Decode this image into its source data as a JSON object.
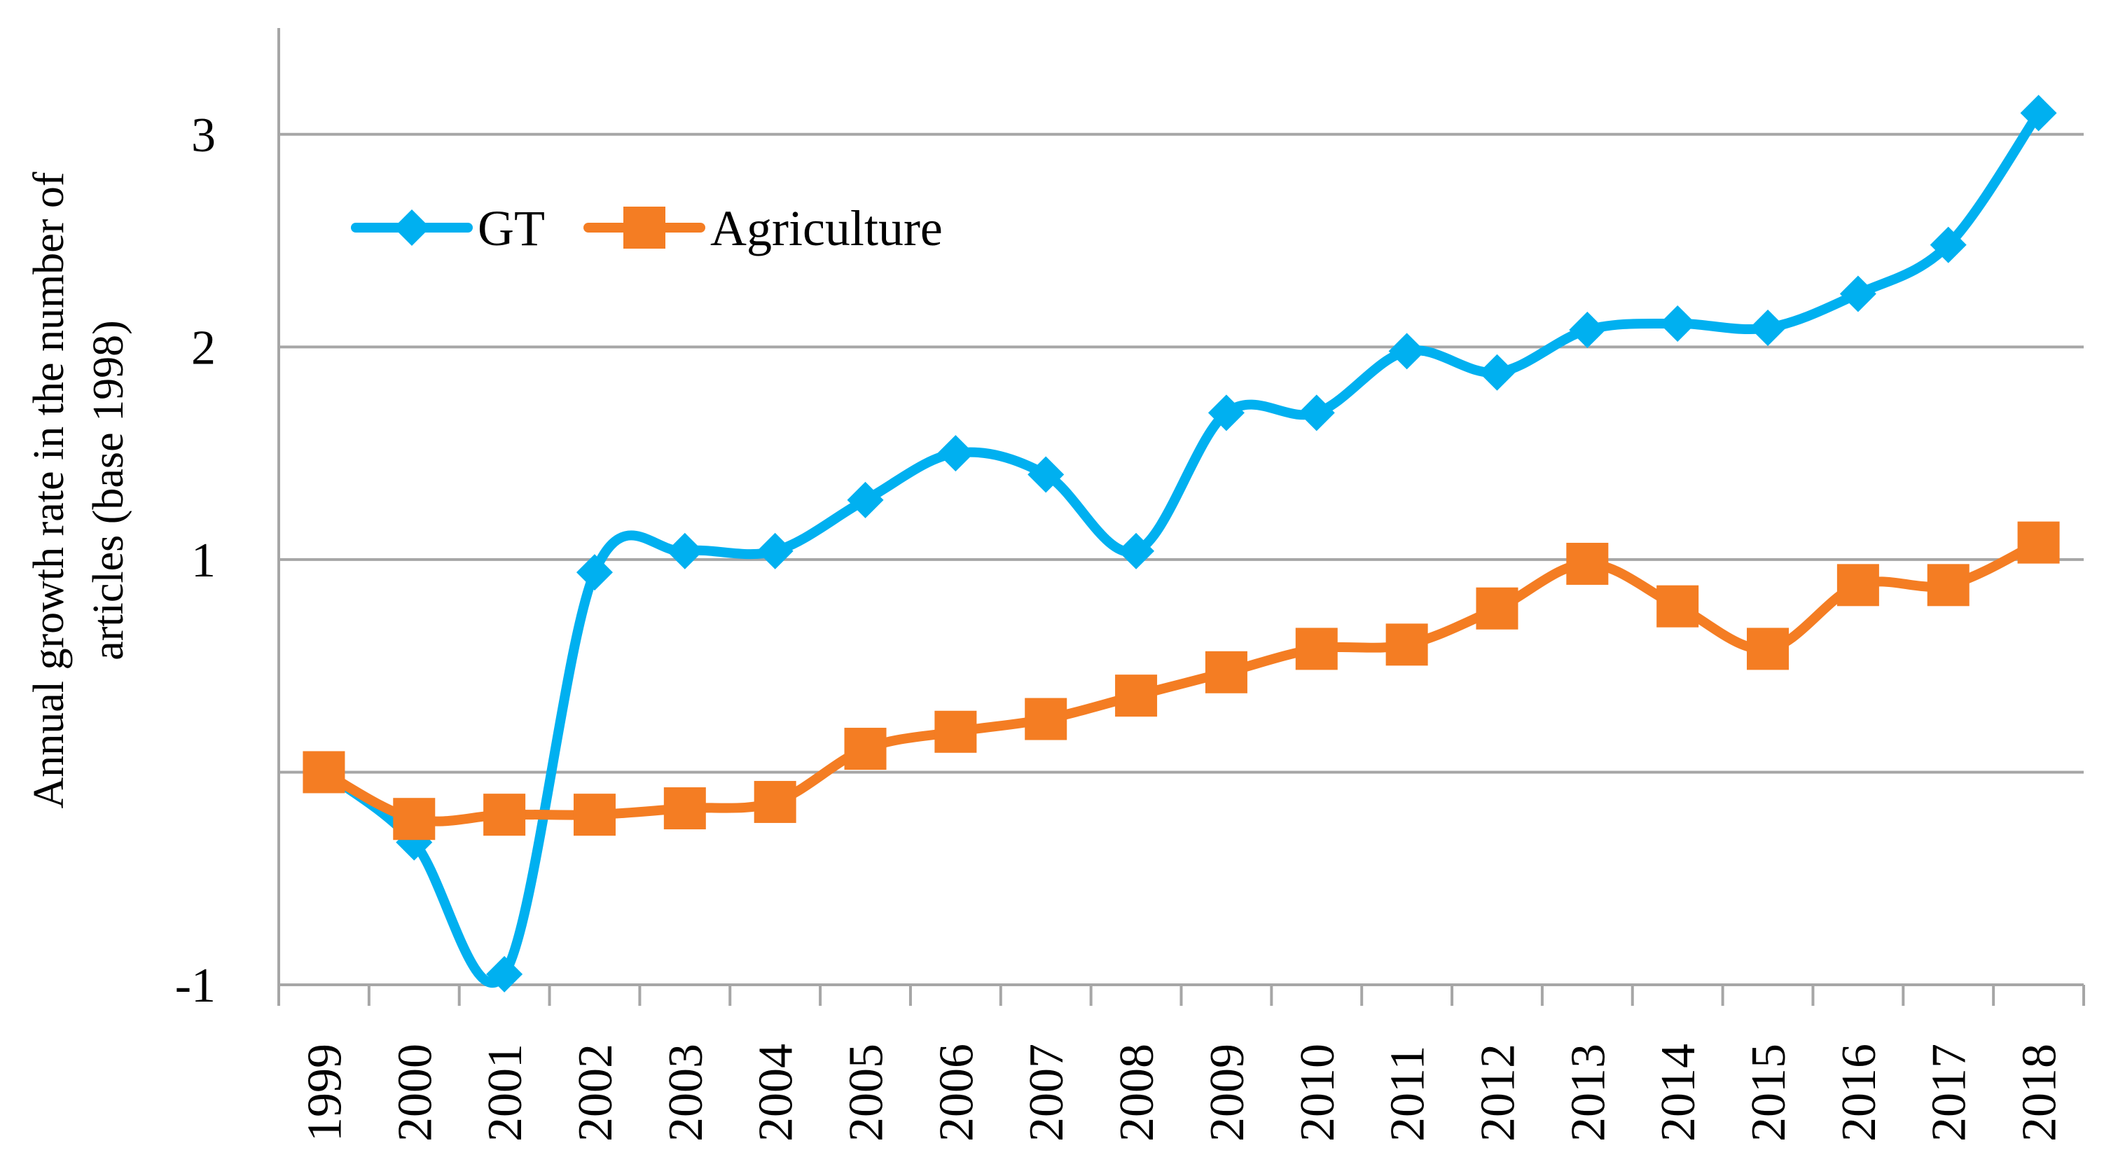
{
  "chart_data": {
    "type": "line",
    "title": "",
    "xlabel": "",
    "ylabel_lines": [
      "Annual growth rate in the number of",
      "articles (base 1998)"
    ],
    "categories": [
      "1999",
      "2000",
      "2001",
      "2002",
      "2003",
      "2004",
      "2005",
      "2006",
      "2007",
      "2008",
      "2009",
      "2010",
      "2011",
      "2012",
      "2013",
      "2014",
      "2015",
      "2016",
      "2017",
      "2018"
    ],
    "y_ticks": [
      {
        "value": -1,
        "label": "-1"
      },
      {
        "value": 0,
        "label": ""
      },
      {
        "value": 1,
        "label": "1"
      },
      {
        "value": 2,
        "label": "2"
      },
      {
        "value": 3,
        "label": "3"
      }
    ],
    "ylim": [
      -1,
      3.5
    ],
    "grid": true,
    "legend_position": "top-left",
    "series": [
      {
        "name": "GT",
        "color": "#00B0F0",
        "marker": "diamond",
        "values": [
          0.0,
          -0.33,
          -0.95,
          0.94,
          1.04,
          1.04,
          1.28,
          1.5,
          1.4,
          1.04,
          1.69,
          1.69,
          1.98,
          1.88,
          2.08,
          2.11,
          2.09,
          2.25,
          2.48,
          3.1
        ]
      },
      {
        "name": "Agriculture",
        "color": "#F47D23",
        "marker": "square",
        "values": [
          0.0,
          -0.22,
          -0.2,
          -0.2,
          -0.17,
          -0.14,
          0.11,
          0.19,
          0.25,
          0.36,
          0.47,
          0.58,
          0.6,
          0.77,
          0.98,
          0.78,
          0.58,
          0.88,
          0.88,
          1.08
        ]
      }
    ]
  }
}
